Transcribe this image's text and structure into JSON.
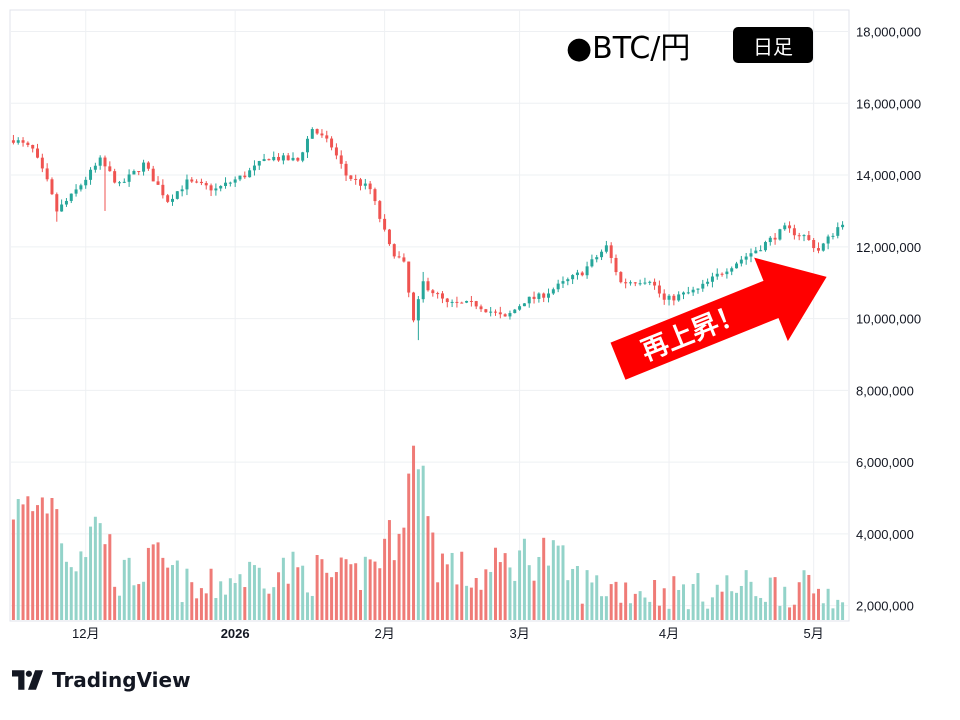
{
  "header": {
    "pair_label": "●BTC/円",
    "timeframe_badge": "日足"
  },
  "annotation": {
    "text": "再上昇！",
    "arrow_color": "#ff0000"
  },
  "brand": {
    "name": "TradingView",
    "logo_icon": "tradingview-logo-icon"
  },
  "colors": {
    "up_candle": "#26a69a",
    "down_candle": "#ef5350",
    "up_volume": "#93d3c9",
    "down_volume": "#ef7b77",
    "grid": "#eef0f3"
  },
  "chart_data": {
    "type": "candlestick",
    "y_ticks": [
      "18,000,000",
      "16,000,000",
      "14,000,000",
      "12,000,000",
      "10,000,000",
      "8,000,000",
      "6,000,000",
      "4,000,000",
      "2,000,000"
    ],
    "y_tick_values": [
      18000000,
      16000000,
      14000000,
      12000000,
      10000000,
      8000000,
      6000000,
      4000000,
      2000000
    ],
    "ylim": [
      1600000,
      18600000
    ],
    "x_ticks": [
      {
        "label": "12月",
        "index": 15,
        "bold": false
      },
      {
        "label": "2026",
        "index": 46,
        "bold": true
      },
      {
        "label": "2月",
        "index": 77,
        "bold": false
      },
      {
        "label": "3月",
        "index": 105,
        "bold": false
      },
      {
        "label": "4月",
        "index": 136,
        "bold": false
      },
      {
        "label": "5月",
        "index": 166,
        "bold": false
      }
    ],
    "candle_count": 173,
    "price_path": [
      {
        "i": 0,
        "p": 15000000
      },
      {
        "i": 4,
        "p": 14700000
      },
      {
        "i": 7,
        "p": 13800000
      },
      {
        "i": 9,
        "p": 13000000
      },
      {
        "i": 12,
        "p": 13400000
      },
      {
        "i": 18,
        "p": 14400000
      },
      {
        "i": 22,
        "p": 13700000
      },
      {
        "i": 27,
        "p": 14300000
      },
      {
        "i": 32,
        "p": 13300000
      },
      {
        "i": 36,
        "p": 13800000
      },
      {
        "i": 42,
        "p": 13600000
      },
      {
        "i": 48,
        "p": 14000000
      },
      {
        "i": 53,
        "p": 14500000
      },
      {
        "i": 59,
        "p": 14400000
      },
      {
        "i": 62,
        "p": 15300000
      },
      {
        "i": 66,
        "p": 14800000
      },
      {
        "i": 69,
        "p": 14000000
      },
      {
        "i": 74,
        "p": 13600000
      },
      {
        "i": 78,
        "p": 12000000
      },
      {
        "i": 81,
        "p": 11500000
      },
      {
        "i": 83,
        "p": 9900000
      },
      {
        "i": 85,
        "p": 11000000
      },
      {
        "i": 90,
        "p": 10400000
      },
      {
        "i": 96,
        "p": 10400000
      },
      {
        "i": 102,
        "p": 10000000
      },
      {
        "i": 106,
        "p": 10500000
      },
      {
        "i": 109,
        "p": 10600000
      },
      {
        "i": 113,
        "p": 10900000
      },
      {
        "i": 118,
        "p": 11300000
      },
      {
        "i": 123,
        "p": 12000000
      },
      {
        "i": 126,
        "p": 11000000
      },
      {
        "i": 132,
        "p": 11100000
      },
      {
        "i": 135,
        "p": 10500000
      },
      {
        "i": 142,
        "p": 10800000
      },
      {
        "i": 148,
        "p": 11400000
      },
      {
        "i": 155,
        "p": 12000000
      },
      {
        "i": 160,
        "p": 12500000
      },
      {
        "i": 164,
        "p": 12300000
      },
      {
        "i": 167,
        "p": 11900000
      },
      {
        "i": 172,
        "p": 12700000
      }
    ],
    "volume_path": [
      {
        "i": 0,
        "v": 4400000
      },
      {
        "i": 8,
        "v": 5000000
      },
      {
        "i": 12,
        "v": 3300000
      },
      {
        "i": 18,
        "v": 4300000
      },
      {
        "i": 22,
        "v": 2700000
      },
      {
        "i": 30,
        "v": 3200000
      },
      {
        "i": 38,
        "v": 2300000
      },
      {
        "i": 46,
        "v": 2800000
      },
      {
        "i": 54,
        "v": 3000000
      },
      {
        "i": 62,
        "v": 2900000
      },
      {
        "i": 70,
        "v": 2700000
      },
      {
        "i": 78,
        "v": 3700000
      },
      {
        "i": 83,
        "v": 5900000
      },
      {
        "i": 88,
        "v": 3300000
      },
      {
        "i": 96,
        "v": 2700000
      },
      {
        "i": 104,
        "v": 3300000
      },
      {
        "i": 110,
        "v": 3500000
      },
      {
        "i": 118,
        "v": 2600000
      },
      {
        "i": 126,
        "v": 2500000
      },
      {
        "i": 134,
        "v": 2400000
      },
      {
        "i": 142,
        "v": 2400000
      },
      {
        "i": 150,
        "v": 2500000
      },
      {
        "i": 160,
        "v": 2500000
      },
      {
        "i": 168,
        "v": 2400000
      },
      {
        "i": 172,
        "v": 2500000
      }
    ],
    "spikes": [
      {
        "i": 9,
        "low": 12700000
      },
      {
        "i": 19,
        "low": 13000000
      },
      {
        "i": 84,
        "low": 9400000
      },
      {
        "i": 85,
        "high": 11300000,
        "volume": 5900000
      },
      {
        "i": 84,
        "volume": 5800000
      },
      {
        "i": 8,
        "volume": 5000000
      },
      {
        "i": 0,
        "volume": 4400000
      },
      {
        "i": 18,
        "volume": 4300000
      }
    ],
    "grid": true,
    "legend": "none"
  }
}
